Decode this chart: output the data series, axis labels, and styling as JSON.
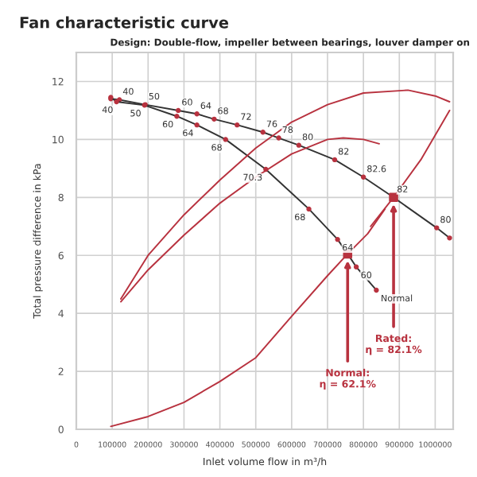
{
  "chart_data": {
    "type": "line",
    "title": "Fan characteristic curve",
    "subtitle": "Design: Double-flow, impeller between bearings, louver damper on",
    "xlabel": "Inlet volume flow in m³/h",
    "ylabel": "Total pressure difference in kPa",
    "xlim": [
      0,
      1050000
    ],
    "xticks": [
      0,
      100000,
      200000,
      300000,
      400000,
      500000,
      600000,
      700000,
      800000,
      900000,
      1000000
    ],
    "ylim": [
      0,
      13
    ],
    "yticks": [
      0,
      2,
      4,
      6,
      8,
      10,
      12
    ],
    "grid": true,
    "marker": "circle",
    "series": [
      {
        "color": "#333333",
        "x": [
          96000,
          120000,
          192000,
          284000,
          336000,
          384000,
          448000,
          520000,
          564000,
          620000,
          720000,
          800000,
          884000,
          1004000,
          1040000
        ],
        "values": [
          11.4,
          11.37,
          11.2,
          11.0,
          10.88,
          10.7,
          10.5,
          10.25,
          10.05,
          9.8,
          9.3,
          8.7,
          8.0,
          6.95,
          6.6
        ]
      },
      {
        "color": "#333333",
        "x": [
          96000,
          112000,
          190000,
          280000,
          336000,
          416000,
          528000,
          648000,
          728000,
          756000,
          780000,
          836000
        ],
        "values": [
          11.45,
          11.3,
          11.18,
          10.8,
          10.5,
          10.0,
          8.97,
          7.6,
          6.55,
          6.05,
          5.6,
          4.8
        ]
      },
      {
        "type": "line",
        "color": "#b8323f",
        "marker": "none",
        "x": [
          124000,
          200000,
          300000,
          400000,
          500000,
          600000,
          700000,
          800000,
          924000,
          1000000,
          1040000
        ],
        "values": [
          4.5,
          6.0,
          7.4,
          8.6,
          9.7,
          10.6,
          11.2,
          11.6,
          11.7,
          11.5,
          11.3
        ]
      },
      {
        "type": "line",
        "color": "#b8323f",
        "marker": "none",
        "x": [
          124000,
          200000,
          300000,
          400000,
          500000,
          600000,
          700000,
          744000,
          800000,
          844000
        ],
        "values": [
          4.4,
          5.5,
          6.7,
          7.8,
          8.7,
          9.5,
          10.0,
          10.05,
          10.0,
          9.85
        ]
      },
      {
        "type": "line",
        "color": "#b8323f",
        "marker": "none",
        "x": [
          96000,
          200000,
          300000,
          400000,
          500000,
          600000,
          700000,
          756000,
          812000,
          860000
        ],
        "values": [
          0.1,
          0.44,
          0.93,
          1.65,
          2.47,
          3.9,
          5.3,
          6.05,
          6.75,
          7.6
        ]
      },
      {
        "type": "line",
        "color": "#b8323f",
        "marker": "none",
        "x": [
          820000,
          884000,
          960000,
          1012000,
          1040000
        ],
        "values": [
          7.0,
          8.0,
          9.3,
          10.4,
          11.0
        ]
      },
      {
        "type": "scatter",
        "color": "#b8323f",
        "marker": "square",
        "x": [
          756000,
          884000
        ],
        "values": [
          6.05,
          8.0
        ]
      }
    ],
    "annotations": [
      {
        "text": "Normal:\nη = 62.1%",
        "x": 756000,
        "y": 6.05
      },
      {
        "text": "Rated:\nη = 82.1%",
        "x": 884000,
        "y": 8.0
      },
      {
        "text": "Normal",
        "x": 836000,
        "y": 4.8
      },
      {
        "text": "40",
        "x": 120000,
        "y": 11.37
      },
      {
        "text": "50",
        "x": 192000,
        "y": 11.2
      },
      {
        "text": "60",
        "x": 284000,
        "y": 11.0
      },
      {
        "text": "64",
        "x": 336000,
        "y": 10.88
      },
      {
        "text": "68",
        "x": 384000,
        "y": 10.7
      },
      {
        "text": "72",
        "x": 448000,
        "y": 10.5
      },
      {
        "text": "76",
        "x": 520000,
        "y": 10.25
      },
      {
        "text": "78",
        "x": 564000,
        "y": 10.05
      },
      {
        "text": "80",
        "x": 620000,
        "y": 9.8
      },
      {
        "text": "82",
        "x": 720000,
        "y": 9.3
      },
      {
        "text": "82.6",
        "x": 800000,
        "y": 8.7
      },
      {
        "text": "82",
        "x": 884000,
        "y": 8.0
      },
      {
        "text": "80",
        "x": 1004000,
        "y": 6.95
      },
      {
        "text": "40",
        "x": 112000,
        "y": 11.3
      },
      {
        "text": "50",
        "x": 190000,
        "y": 11.18
      },
      {
        "text": "60",
        "x": 280000,
        "y": 10.8
      },
      {
        "text": "64",
        "x": 336000,
        "y": 10.5
      },
      {
        "text": "68",
        "x": 416000,
        "y": 10.0
      },
      {
        "text": "70.3",
        "x": 528000,
        "y": 8.97
      },
      {
        "text": "68",
        "x": 648000,
        "y": 7.6
      },
      {
        "text": "64",
        "x": 728000,
        "y": 6.55
      },
      {
        "text": "60",
        "x": 780000,
        "y": 5.6
      }
    ]
  }
}
